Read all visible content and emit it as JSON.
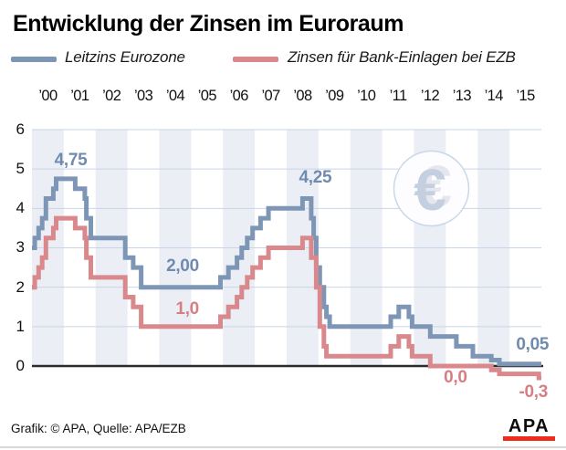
{
  "header": {
    "title": "Entwicklung der Zinsen im Euroraum"
  },
  "legend": [
    {
      "id": "leitzins",
      "label": "Leitzins Eurozone",
      "color": "#7E96B6"
    },
    {
      "id": "einlagen",
      "label": "Zinsen für Bank-Einlagen bei EZB",
      "color": "#D9898C"
    }
  ],
  "chart_data": {
    "type": "line",
    "subtype": "step",
    "grid": "horizontal",
    "x_axis": {
      "range": [
        2000,
        2016
      ],
      "labels": [
        "’00",
        "’01",
        "’02",
        "’03",
        "’04",
        "’05",
        "’06",
        "’07",
        "’08",
        "’09",
        "’10",
        "’11",
        "’12",
        "’13",
        "’14",
        "’15"
      ]
    },
    "y_axis": {
      "ticks": [
        0,
        1,
        2,
        3,
        4,
        5,
        6
      ],
      "range": [
        -0.45,
        6
      ]
    },
    "series": [
      {
        "id": "leitzins",
        "name": "Leitzins Eurozone",
        "color": "#7E96B6",
        "label_color": "#6F8BB0",
        "points": [
          [
            2000.0,
            3.0
          ],
          [
            2000.09,
            3.25
          ],
          [
            2000.21,
            3.5
          ],
          [
            2000.32,
            3.75
          ],
          [
            2000.44,
            4.25
          ],
          [
            2000.67,
            4.5
          ],
          [
            2000.76,
            4.75
          ],
          [
            2001.36,
            4.5
          ],
          [
            2001.66,
            4.25
          ],
          [
            2001.71,
            3.75
          ],
          [
            2001.85,
            3.25
          ],
          [
            2002.93,
            2.75
          ],
          [
            2003.18,
            2.5
          ],
          [
            2003.43,
            2.0
          ],
          [
            2005.92,
            2.25
          ],
          [
            2006.17,
            2.5
          ],
          [
            2006.44,
            2.75
          ],
          [
            2006.59,
            3.0
          ],
          [
            2006.76,
            3.25
          ],
          [
            2006.93,
            3.5
          ],
          [
            2007.18,
            3.75
          ],
          [
            2007.43,
            4.0
          ],
          [
            2008.5,
            4.25
          ],
          [
            2008.77,
            3.75
          ],
          [
            2008.85,
            3.25
          ],
          [
            2008.93,
            2.5
          ],
          [
            2009.04,
            2.0
          ],
          [
            2009.17,
            1.5
          ],
          [
            2009.25,
            1.25
          ],
          [
            2009.35,
            1.0
          ],
          [
            2011.27,
            1.25
          ],
          [
            2011.52,
            1.5
          ],
          [
            2011.84,
            1.25
          ],
          [
            2011.94,
            1.0
          ],
          [
            2012.51,
            0.75
          ],
          [
            2013.33,
            0.5
          ],
          [
            2013.85,
            0.25
          ],
          [
            2014.43,
            0.15
          ],
          [
            2014.68,
            0.05
          ],
          [
            2016.0,
            0.05
          ]
        ]
      },
      {
        "id": "einlagen",
        "name": "Zinsen für Bank-Einlagen bei EZB",
        "color": "#D9898C",
        "label_color": "#D67E84",
        "points": [
          [
            2000.0,
            2.0
          ],
          [
            2000.09,
            2.25
          ],
          [
            2000.21,
            2.5
          ],
          [
            2000.32,
            2.75
          ],
          [
            2000.44,
            3.25
          ],
          [
            2000.67,
            3.5
          ],
          [
            2000.76,
            3.75
          ],
          [
            2001.36,
            3.5
          ],
          [
            2001.66,
            3.25
          ],
          [
            2001.71,
            2.75
          ],
          [
            2001.85,
            2.25
          ],
          [
            2002.93,
            1.75
          ],
          [
            2003.18,
            1.5
          ],
          [
            2003.43,
            1.0
          ],
          [
            2005.92,
            1.25
          ],
          [
            2006.17,
            1.5
          ],
          [
            2006.44,
            1.75
          ],
          [
            2006.59,
            2.0
          ],
          [
            2006.76,
            2.25
          ],
          [
            2006.93,
            2.5
          ],
          [
            2007.18,
            2.75
          ],
          [
            2007.43,
            3.0
          ],
          [
            2008.5,
            3.25
          ],
          [
            2008.77,
            2.75
          ],
          [
            2008.93,
            2.0
          ],
          [
            2009.04,
            1.0
          ],
          [
            2009.17,
            0.5
          ],
          [
            2009.25,
            0.25
          ],
          [
            2011.27,
            0.5
          ],
          [
            2011.52,
            0.75
          ],
          [
            2011.84,
            0.5
          ],
          [
            2011.94,
            0.25
          ],
          [
            2012.51,
            0.0
          ],
          [
            2014.43,
            -0.1
          ],
          [
            2014.68,
            -0.2
          ],
          [
            2015.92,
            -0.3
          ],
          [
            2016.0,
            -0.3
          ]
        ]
      }
    ],
    "annotations": [
      {
        "text": "4,75",
        "year": 2001.22,
        "value": 5.22,
        "series": "leitzins"
      },
      {
        "text": "2,00",
        "year": 2004.73,
        "value": 2.52,
        "series": "leitzins"
      },
      {
        "text": "4,25",
        "year": 2008.9,
        "value": 4.78,
        "series": "leitzins"
      },
      {
        "text": "1,0",
        "year": 2004.88,
        "value": 1.43,
        "series": "einlagen"
      },
      {
        "text": "0,05",
        "year": 2015.72,
        "value": 0.53,
        "series": "leitzins"
      },
      {
        "text": "0,0",
        "year": 2013.3,
        "value": -0.3,
        "series": "einlagen"
      },
      {
        "text": "-0,3",
        "year": 2015.75,
        "value": -0.67,
        "series": "einlagen"
      }
    ],
    "watermark": "€",
    "style": {
      "stripe": "#ECEEF6",
      "grid": "#C9D4E5",
      "zero_line": "#2B2B2B",
      "watermark_circle_fill": "#FDFDFF",
      "watermark_circle_border": "#C9D7EA",
      "watermark_glyph": "#C4D0E0",
      "watermark_halo": "#E6E7EE"
    }
  },
  "footer": {
    "credit": "Grafik: © APA, Quelle: APA/EZB",
    "logo": "APA",
    "logo_bar_color": "#EE2B1C"
  }
}
